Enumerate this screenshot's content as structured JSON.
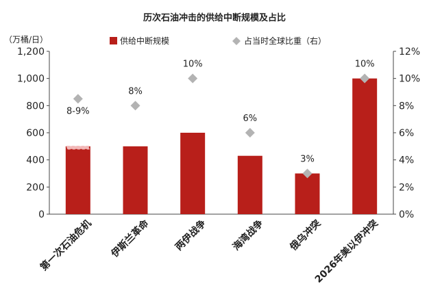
{
  "chart_data": {
    "type": "bar",
    "title": "历次石油冲击的供给中断规模及占比",
    "unit_label": "（万桶/日）",
    "categories": [
      "第一次石油危机",
      "伊斯兰革命",
      "两伊战争",
      "海湾战争",
      "俄乌冲突",
      "2026年美以伊冲突"
    ],
    "series": [
      {
        "name": "供给中断规模",
        "values": [
          500,
          500,
          600,
          430,
          300,
          1000
        ],
        "color": "#b81f1a",
        "axis": "left"
      },
      {
        "name": "占当时全球比重（右）",
        "values": [
          8.5,
          8,
          10,
          6,
          3,
          10
        ],
        "color": "#b3b3b3",
        "axis": "right",
        "marker": "diamond"
      }
    ],
    "point_labels": [
      "8-9%",
      "8%",
      "10%",
      "6%",
      "3%",
      "10%"
    ],
    "range_note": {
      "category": "第一次石油危机",
      "from": 480,
      "to": 500,
      "color": "#f2b8b8",
      "style": "dashed"
    },
    "y_left": {
      "min": 0,
      "max": 1200,
      "ticks": [
        "0",
        "200",
        "400",
        "600",
        "800",
        "1,000",
        "1,200"
      ]
    },
    "y_right": {
      "min": 0,
      "max": 12,
      "ticks": [
        "0%",
        "2%",
        "4%",
        "6%",
        "8%",
        "10%",
        "12%"
      ]
    },
    "legend_position": "top",
    "grid": false
  }
}
